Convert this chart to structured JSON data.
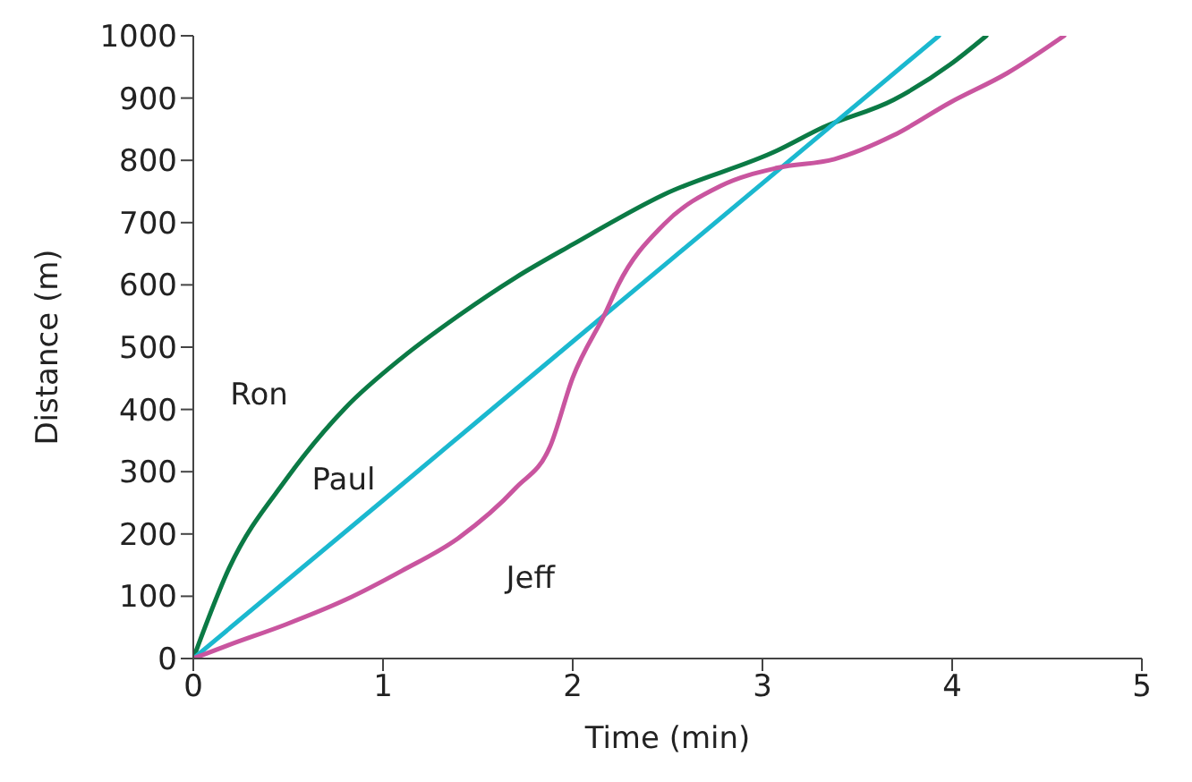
{
  "chart_data": {
    "type": "line",
    "xlabel": "Time (min)",
    "ylabel": "Distance (m)",
    "xlim": [
      0,
      5
    ],
    "xticks": [
      0,
      1,
      2,
      3,
      4,
      5
    ],
    "ylim": [
      0,
      1000
    ],
    "yticks": [
      0,
      100,
      200,
      300,
      400,
      500,
      600,
      700,
      800,
      900,
      1000
    ],
    "marker": "none",
    "line_style": "solid",
    "series": [
      {
        "name": "Ron",
        "color": "#0b7a45",
        "x": [
          0,
          0.19,
          0.49,
          0.8,
          1.1,
          1.4,
          1.7,
          2.0,
          2.48,
          3.08,
          3.32,
          3.69,
          3.99,
          4.18
        ],
        "values": [
          0,
          146,
          288,
          402,
          483,
          551,
          612,
          665,
          745,
          816,
          853,
          897,
          954,
          1000
        ]
      },
      {
        "name": "Paul",
        "color": "#1bb8cf",
        "x": [
          0,
          1,
          2,
          3,
          3.93
        ],
        "values": [
          0,
          254,
          509,
          763,
          1000
        ]
      },
      {
        "name": "Jeff",
        "color": "#c9559f",
        "x": [
          0,
          0.19,
          0.49,
          0.8,
          1.1,
          1.4,
          1.7,
          1.88,
          2.0,
          2.18,
          2.24,
          2.48,
          2.78,
          3.08,
          3.38,
          3.69,
          3.99,
          4.29,
          4.59
        ],
        "values": [
          0,
          22,
          55,
          94,
          141,
          194,
          274,
          340,
          451,
          560,
          600,
          697,
          759,
          788,
          802,
          840,
          893,
          940,
          1000
        ]
      }
    ]
  }
}
